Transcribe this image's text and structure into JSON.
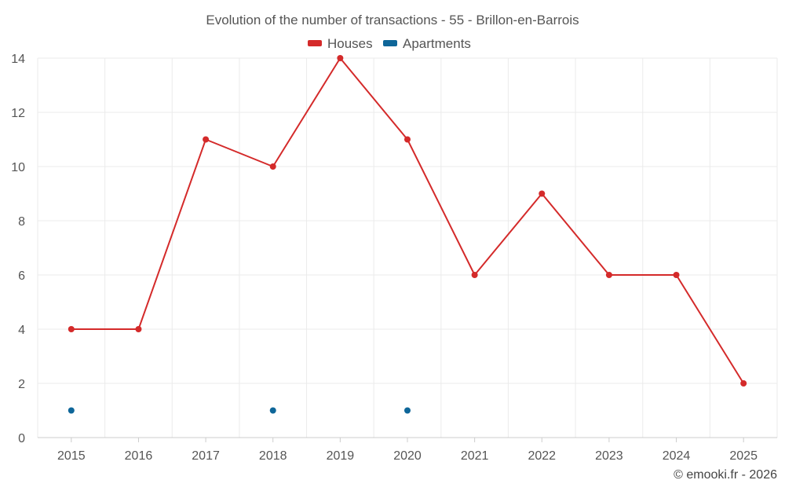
{
  "chart_data": {
    "type": "line",
    "title": "Evolution of the number of transactions - 55 - Brillon-en-Barrois",
    "xlabel": "",
    "ylabel": "",
    "categories": [
      "2015",
      "2016",
      "2017",
      "2018",
      "2019",
      "2020",
      "2021",
      "2022",
      "2023",
      "2024",
      "2025"
    ],
    "ylim": [
      0,
      14
    ],
    "yticks": [
      0,
      2,
      4,
      6,
      8,
      10,
      12,
      14
    ],
    "grid": true,
    "legend": "top-center",
    "series": [
      {
        "name": "Houses",
        "color": "#d42a2a",
        "values": [
          4,
          4,
          11,
          10,
          14,
          11,
          6,
          9,
          6,
          6,
          2
        ],
        "line": true
      },
      {
        "name": "Apartments",
        "color": "#0e6699",
        "values": [
          1,
          null,
          null,
          1,
          null,
          1,
          null,
          null,
          null,
          null,
          null
        ],
        "line": false
      }
    ]
  },
  "credit": "© emooki.fr - 2026"
}
